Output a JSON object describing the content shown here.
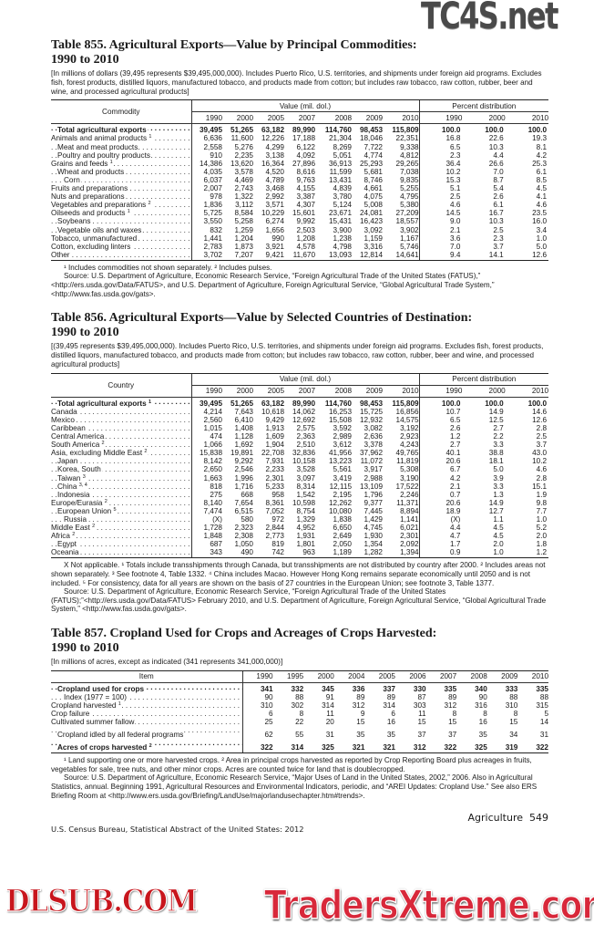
{
  "watermarks": {
    "top": "TC4S.net",
    "middle": "DLSUB.COM",
    "bottom": "TradersXtreme.com"
  },
  "tables": [
    {
      "title_line1": "Table 855. Agricultural Exports—Value by Principal Commodities:",
      "title_line2": "1990 to 2010",
      "note": "[In millions of dollars (39,495 represents $39,495,000,000). Includes Puerto Rico, U.S. territories, and shipments under foreign aid programs. Excludes fish, forest products, distilled liquors, manufactured tobacco, and products made from cotton; but includes raw tobacco, raw cotton, rubber, beer and wine, and processed agricultural products]",
      "stub_header": "Commodity",
      "groups": [
        {
          "label": "Value (mil. dol.)",
          "span": 7
        },
        {
          "label": "Percent distribution",
          "span": 3
        }
      ],
      "years": [
        "1990",
        "2000",
        "2005",
        "2007",
        "2008",
        "2009",
        "2010",
        "1990",
        "2000",
        "2010"
      ],
      "rows": [
        {
          "label": "Total agricultural exports",
          "sup": "",
          "indent": 1,
          "bold": true,
          "values": [
            "39,495",
            "51,265",
            "63,182",
            "89,990",
            "114,760",
            "98,453",
            "115,809",
            "100.0",
            "100.0",
            "100.0"
          ]
        },
        {
          "label": "Animals and animal products",
          "sup": "1",
          "indent": 0,
          "values": [
            "6,636",
            "11,600",
            "12,226",
            "17,188",
            "21,304",
            "18,046",
            "22,351",
            "16.8",
            "22.6",
            "19.3"
          ]
        },
        {
          "label": "Meat and meat products",
          "sup": "",
          "indent": 1,
          "values": [
            "2,558",
            "5,276",
            "4,299",
            "6,122",
            "8,269",
            "7,722",
            "9,338",
            "6.5",
            "10.3",
            "8.1"
          ]
        },
        {
          "label": "Poultry and poultry products",
          "sup": "",
          "indent": 1,
          "values": [
            "910",
            "2,235",
            "3,138",
            "4,092",
            "5,051",
            "4,774",
            "4,812",
            "2.3",
            "4.4",
            "4.2"
          ]
        },
        {
          "label": "Grains and feeds",
          "sup": "1",
          "indent": 0,
          "values": [
            "14,386",
            "13,620",
            "16,364",
            "27,896",
            "36,913",
            "25,293",
            "29,265",
            "36.4",
            "26.6",
            "25.3"
          ]
        },
        {
          "label": "Wheat and products",
          "sup": "",
          "indent": 1,
          "values": [
            "4,035",
            "3,578",
            "4,520",
            "8,616",
            "11,599",
            "5,681",
            "7,038",
            "10.2",
            "7.0",
            "6.1"
          ]
        },
        {
          "label": "Corn",
          "sup": "",
          "indent": 2,
          "values": [
            "6,037",
            "4,469",
            "4,789",
            "9,763",
            "13,431",
            "8,746",
            "9,835",
            "15.3",
            "8.7",
            "8.5"
          ]
        },
        {
          "label": "Fruits and preparations",
          "sup": "",
          "indent": 0,
          "values": [
            "2,007",
            "2,743",
            "3,468",
            "4,155",
            "4,839",
            "4,661",
            "5,255",
            "5.1",
            "5.4",
            "4.5"
          ]
        },
        {
          "label": "Nuts and preparations",
          "sup": "",
          "indent": 0,
          "values": [
            "978",
            "1,322",
            "2,992",
            "3,387",
            "3,780",
            "4,075",
            "4,795",
            "2.5",
            "2.6",
            "4.1"
          ]
        },
        {
          "label": "Vegetables and preparations",
          "sup": "2",
          "indent": 0,
          "values": [
            "1,836",
            "3,112",
            "3,571",
            "4,307",
            "5,124",
            "5,008",
            "5,380",
            "4.6",
            "6.1",
            "4.6"
          ]
        },
        {
          "label": "Oilseeds and products",
          "sup": "1",
          "indent": 0,
          "values": [
            "5,725",
            "8,584",
            "10,229",
            "15,601",
            "23,671",
            "24,081",
            "27,209",
            "14.5",
            "16.7",
            "23.5"
          ]
        },
        {
          "label": "Soybeans",
          "sup": "",
          "indent": 1,
          "values": [
            "3,550",
            "5,258",
            "6,274",
            "9,992",
            "15,431",
            "16,423",
            "18,557",
            "9.0",
            "10.3",
            "16.0"
          ]
        },
        {
          "label": "Vegetable oils and waxes",
          "sup": "",
          "indent": 1,
          "values": [
            "832",
            "1,259",
            "1,656",
            "2,503",
            "3,900",
            "3,092",
            "3,902",
            "2.1",
            "2.5",
            "3.4"
          ]
        },
        {
          "label": "Tobacco, unmanufactured",
          "sup": "",
          "indent": 0,
          "values": [
            "1,441",
            "1,204",
            "990",
            "1,208",
            "1,238",
            "1,159",
            "1,167",
            "3.6",
            "2.3",
            "1.0"
          ]
        },
        {
          "label": "Cotton, excluding linters",
          "sup": "",
          "indent": 0,
          "values": [
            "2,783",
            "1,873",
            "3,921",
            "4,578",
            "4,798",
            "3,316",
            "5,746",
            "7.0",
            "3.7",
            "5.0"
          ]
        },
        {
          "label": "Other",
          "sup": "",
          "indent": 0,
          "values": [
            "3,702",
            "7,207",
            "9,421",
            "11,670",
            "13,093",
            "12,814",
            "14,641",
            "9.4",
            "14.1",
            "12.6"
          ]
        }
      ],
      "footnotes": [
        "¹ Includes commodities not shown separately. ² Includes pulses.",
        "Source: U.S. Department of Agriculture, Economic Research Service, “Foreign Agricultural Trade of the United States (FATUS),” <http://ers.usda.gov/Data/FATUS>, and U.S. Department of Agriculture, Foreign Agricultural Service, “Global Agricultural Trade System,” <http://www.fas.usda.gov/gats>."
      ]
    },
    {
      "title_line1": "Table 856. Agricultural Exports—Value by Selected Countries of Destination:",
      "title_line2": "1990 to 2010",
      "note": "[(39,495 represents $39,495,000,000). Includes Puerto Rico, U.S. territories, and shipments under foreign aid programs. Excludes fish, forest products, distilled liquors, manufactured tobacco, and products made from cotton; but includes raw tobacco, raw cotton, rubber, beer and wine, and processed agricultural products]",
      "stub_header": "Country",
      "groups": [
        {
          "label": "Value (mil. dol.)",
          "span": 7
        },
        {
          "label": "Percent distribution",
          "span": 3
        }
      ],
      "years": [
        "1990",
        "2000",
        "2005",
        "2007",
        "2008",
        "2009",
        "2010",
        "1990",
        "2000",
        "2010"
      ],
      "rows": [
        {
          "label": "Total agricultural exports",
          "sup": "1",
          "indent": 1,
          "bold": true,
          "values": [
            "39,495",
            "51,265",
            "63,182",
            "89,990",
            "114,760",
            "98,453",
            "115,809",
            "100.0",
            "100.0",
            "100.0"
          ]
        },
        {
          "label": "Canada",
          "sup": "",
          "indent": 0,
          "values": [
            "4,214",
            "7,643",
            "10,618",
            "14,062",
            "16,253",
            "15,725",
            "16,856",
            "10.7",
            "14.9",
            "14.6"
          ]
        },
        {
          "label": "Mexico",
          "sup": "",
          "indent": 0,
          "values": [
            "2,560",
            "6,410",
            "9,429",
            "12,692",
            "15,508",
            "12,932",
            "14,575",
            "6.5",
            "12.5",
            "12.6"
          ]
        },
        {
          "label": "Caribbean",
          "sup": "",
          "indent": 0,
          "values": [
            "1,015",
            "1,408",
            "1,913",
            "2,575",
            "3,592",
            "3,082",
            "3,192",
            "2.6",
            "2.7",
            "2.8"
          ]
        },
        {
          "label": "Central America",
          "sup": "",
          "indent": 0,
          "values": [
            "474",
            "1,128",
            "1,609",
            "2,363",
            "2,989",
            "2,636",
            "2,923",
            "1.2",
            "2.2",
            "2.5"
          ]
        },
        {
          "label": "South America",
          "sup": "2",
          "indent": 0,
          "values": [
            "1,066",
            "1,692",
            "1,904",
            "2,510",
            "3,612",
            "3,378",
            "4,243",
            "2.7",
            "3.3",
            "3.7"
          ]
        },
        {
          "label": "Asia, excluding Middle East",
          "sup": "2",
          "indent": 0,
          "values": [
            "15,838",
            "19,891",
            "22,708",
            "32,836",
            "41,956",
            "37,962",
            "49,765",
            "40.1",
            "38.8",
            "43.0"
          ]
        },
        {
          "label": "Japan",
          "sup": "",
          "indent": 1,
          "values": [
            "8,142",
            "9,292",
            "7,931",
            "10,158",
            "13,223",
            "11,072",
            "11,819",
            "20.6",
            "18.1",
            "10.2"
          ]
        },
        {
          "label": "Korea, South",
          "sup": "",
          "indent": 1,
          "values": [
            "2,650",
            "2,546",
            "2,233",
            "3,528",
            "5,561",
            "3,917",
            "5,308",
            "6.7",
            "5.0",
            "4.6"
          ]
        },
        {
          "label": "Taiwan",
          "sup": "3",
          "indent": 1,
          "values": [
            "1,663",
            "1,996",
            "2,301",
            "3,097",
            "3,419",
            "2,988",
            "3,190",
            "4.2",
            "3.9",
            "2.8"
          ]
        },
        {
          "label": "China",
          "sup": "3, 4",
          "indent": 1,
          "values": [
            "818",
            "1,716",
            "5,233",
            "8,314",
            "12,115",
            "13,109",
            "17,522",
            "2.1",
            "3.3",
            "15.1"
          ]
        },
        {
          "label": "Indonesia",
          "sup": "",
          "indent": 1,
          "values": [
            "275",
            "668",
            "958",
            "1,542",
            "2,195",
            "1,796",
            "2,246",
            "0.7",
            "1.3",
            "1.9"
          ]
        },
        {
          "label": "Europe/Eurasia",
          "sup": "2",
          "indent": 0,
          "values": [
            "8,140",
            "7,654",
            "8,361",
            "10,598",
            "12,262",
            "9,377",
            "11,371",
            "20.6",
            "14.9",
            "9.8"
          ]
        },
        {
          "label": "European Union",
          "sup": "5",
          "indent": 1,
          "values": [
            "7,474",
            "6,515",
            "7,052",
            "8,754",
            "10,080",
            "7,445",
            "8,894",
            "18.9",
            "12.7",
            "7.7"
          ]
        },
        {
          "label": "Russia",
          "sup": "",
          "indent": 2,
          "values": [
            "(X)",
            "580",
            "972",
            "1,329",
            "1,838",
            "1,429",
            "1,141",
            "(X)",
            "1.1",
            "1.0"
          ]
        },
        {
          "label": "Middle East",
          "sup": "2",
          "indent": 0,
          "values": [
            "1,728",
            "2,323",
            "2,844",
            "4,952",
            "6,650",
            "4,745",
            "6,021",
            "4.4",
            "4.5",
            "5.2"
          ]
        },
        {
          "label": "Africa",
          "sup": "2",
          "indent": 0,
          "values": [
            "1,848",
            "2,308",
            "2,773",
            "1,931",
            "2,649",
            "1,930",
            "2,301",
            "4.7",
            "4.5",
            "2.0"
          ]
        },
        {
          "label": "Egypt",
          "sup": "",
          "indent": 1,
          "values": [
            "687",
            "1,050",
            "819",
            "1,801",
            "2,050",
            "1,354",
            "2,092",
            "1.7",
            "2.0",
            "1.8"
          ]
        },
        {
          "label": "Oceania",
          "sup": "",
          "indent": 0,
          "values": [
            "343",
            "490",
            "742",
            "963",
            "1,189",
            "1,282",
            "1,394",
            "0.9",
            "1.0",
            "1.2"
          ]
        }
      ],
      "footnotes": [
        "X Not applicable. ¹ Totals include transshipments through Canada, but transshipments are not distributed by country after 2000. ² Includes areas not shown separately. ³ See footnote 4, Table 1332. ⁴ China includes Macao. However Hong Kong remains separate economically until 2050 and is not included. ⁵ For consistency, data for all years are shown on the basis of 27 countries in the European Union; see footnote 3, Table 1377.",
        "Source: U.S. Department of Agriculture, Economic Research Service, “Foreign Agricultural Trade of the United States (FATUS);”<http://ers.usda.gov/Data/FATUS> February 2010, and U.S. Department of Agriculture, Foreign Agricultural Service, “Global Agricultural Trade System,” <http://www.fas.usda.gov/gats>."
      ]
    },
    {
      "title_line1": "Table 857. Cropland Used for Crops and Acreages of Crops Harvested:",
      "title_line2": "1990 to 2010",
      "note": "[In millions of acres, except as indicated (341 represents 341,000,000)]",
      "stub_header": "Item",
      "groups": [],
      "years": [
        "1990",
        "1995",
        "2000",
        "2004",
        "2005",
        "2006",
        "2007",
        "2008",
        "2009",
        "2010"
      ],
      "rows": [
        {
          "label": "Cropland used for crops",
          "sup": "",
          "indent": 1,
          "bold": true,
          "values": [
            "341",
            "332",
            "345",
            "336",
            "337",
            "330",
            "335",
            "340",
            "333",
            "335"
          ]
        },
        {
          "label": "Index (1977 = 100)",
          "sup": "",
          "indent": 2,
          "values": [
            "90",
            "88",
            "91",
            "89",
            "89",
            "87",
            "89",
            "90",
            "88",
            "88"
          ]
        },
        {
          "label": "Cropland harvested",
          "sup": "1",
          "indent": 0,
          "values": [
            "310",
            "302",
            "314",
            "312",
            "314",
            "303",
            "312",
            "316",
            "310",
            "315"
          ]
        },
        {
          "label": "Crop failure",
          "sup": "",
          "indent": 0,
          "values": [
            "6",
            "8",
            "11",
            "9",
            "6",
            "11",
            "8",
            "8",
            "8",
            "5"
          ]
        },
        {
          "label": "Cultivated summer fallow",
          "sup": "",
          "indent": 0,
          "values": [
            "25",
            "22",
            "20",
            "15",
            "16",
            "15",
            "15",
            "16",
            "15",
            "14"
          ]
        },
        {
          "label": "Cropland idled by all federal programs",
          "sup": "",
          "indent": 1,
          "gap": true,
          "values": [
            "62",
            "55",
            "31",
            "35",
            "35",
            "37",
            "37",
            "35",
            "34",
            "31"
          ]
        },
        {
          "label": "Acres of crops harvested",
          "sup": "2",
          "indent": 1,
          "bold": true,
          "gap": true,
          "values": [
            "322",
            "314",
            "325",
            "321",
            "321",
            "312",
            "322",
            "325",
            "319",
            "322"
          ]
        }
      ],
      "footnotes": [
        "¹ Land supporting one or more harvested crops. ² Area in principal crops harvested as reported by Crop Reporting Board plus acreages in fruits, vegetables for sale, tree nuts, and other minor crops. Acres are counted twice for land that is doublecropped.",
        "Source: U.S. Department of Agriculture, Economic Research Service, “Major Uses of Land in the United States, 2002,” 2006. Also in Agricultural Statistics, annual. Beginning 1991, Agricultural Resources and Environmental Indicators, periodic, and “AREI Updates: Cropland Use.” See also ERS Briefing Room at <http://www.ers.usda.gov/Briefing/LandUse/majorlandusechapter.htm#trends>."
      ]
    }
  ],
  "footer": {
    "left": "U.S. Census Bureau, Statistical Abstract of the United States: 2012",
    "right": "Agriculture  549"
  }
}
